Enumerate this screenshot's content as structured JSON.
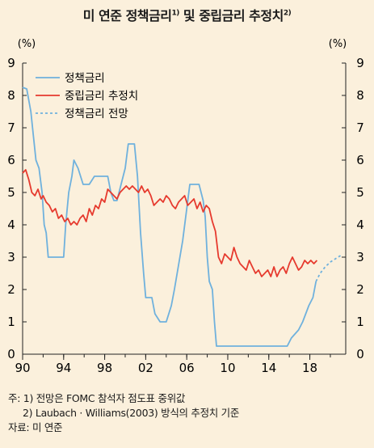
{
  "title": {
    "part1": "미 연준 정책금리",
    "sup1": "1)",
    "part2": " 및 중립금리 추정치",
    "sup2": "2)"
  },
  "notes": {
    "note1": "주: 1) 전망은 FOMC 참석자 점도표 중위값",
    "note2": "2) Laubach · Williams(2003) 방식의 추정치 기준",
    "source": "자료: 미 연준"
  },
  "colors": {
    "policy": "#6fb1dd",
    "neutral": "#e63a2e",
    "projection": "#6fb1dd",
    "background": "#fbf0dc"
  },
  "chart_data": {
    "type": "line",
    "title": "미 연준 정책금리 및 중립금리 추정치",
    "ylabel_left": "(%)",
    "ylabel_right": "(%)",
    "xlabel": "",
    "ylim": [
      0,
      9
    ],
    "xlim": [
      1990,
      2021.5
    ],
    "yticks": [
      "0",
      "1",
      "2",
      "3",
      "4",
      "5",
      "6",
      "7",
      "8",
      "9"
    ],
    "xticks": [
      {
        "value": 1990,
        "label": "90"
      },
      {
        "value": 1994,
        "label": "94"
      },
      {
        "value": 1998,
        "label": "98"
      },
      {
        "value": 2002,
        "label": "02"
      },
      {
        "value": 2006,
        "label": "06"
      },
      {
        "value": 2010,
        "label": "10"
      },
      {
        "value": 2014,
        "label": "14"
      },
      {
        "value": 2018,
        "label": "18"
      }
    ],
    "legend_position": "top-left",
    "grid": false,
    "series": [
      {
        "name": "정책금리",
        "style": "solid",
        "x": [
          1990.0,
          1990.4,
          1990.8,
          1991.0,
          1991.3,
          1991.6,
          1991.9,
          1992.1,
          1992.3,
          1992.5,
          1992.8,
          1993.5,
          1994.0,
          1994.2,
          1994.5,
          1994.8,
          1995.0,
          1995.4,
          1995.9,
          1996.5,
          1997.0,
          1997.2,
          1997.5,
          1998.3,
          1998.6,
          1998.9,
          1999.2,
          1999.6,
          2000.0,
          2000.3,
          2000.9,
          2001.2,
          2001.5,
          2001.8,
          2002.0,
          2002.6,
          2002.9,
          2003.4,
          2004.0,
          2004.5,
          2004.8,
          2005.2,
          2005.6,
          2006.0,
          2006.3,
          2006.6,
          2007.2,
          2007.6,
          2007.8,
          2008.0,
          2008.2,
          2008.5,
          2008.7,
          2008.9,
          2009.0,
          2015.8,
          2016.2,
          2016.9,
          2017.3,
          2017.6,
          2017.9,
          2018.3,
          2018.6
        ],
        "y": [
          8.25,
          8.2,
          7.5,
          6.9,
          6.0,
          5.75,
          5.0,
          4.0,
          3.75,
          3.0,
          3.0,
          3.0,
          3.0,
          4.0,
          5.0,
          5.5,
          6.0,
          5.75,
          5.25,
          5.25,
          5.5,
          5.5,
          5.5,
          5.5,
          5.0,
          4.75,
          4.75,
          5.25,
          5.75,
          6.5,
          6.5,
          5.5,
          3.75,
          2.5,
          1.75,
          1.75,
          1.25,
          1.0,
          1.0,
          1.5,
          2.0,
          2.75,
          3.5,
          4.5,
          5.25,
          5.25,
          5.25,
          4.75,
          4.25,
          3.0,
          2.25,
          2.0,
          1.0,
          0.25,
          0.25,
          0.25,
          0.5,
          0.75,
          1.0,
          1.25,
          1.5,
          1.75,
          2.25
        ]
      },
      {
        "name": "중립금리 추정치",
        "style": "solid",
        "x": [
          1990.0,
          1990.3,
          1990.6,
          1990.9,
          1991.2,
          1991.5,
          1991.8,
          1992.0,
          1992.3,
          1992.6,
          1992.9,
          1993.2,
          1993.5,
          1993.8,
          1994.1,
          1994.4,
          1994.7,
          1995.0,
          1995.3,
          1995.6,
          1995.9,
          1996.2,
          1996.5,
          1996.8,
          1997.1,
          1997.4,
          1997.7,
          1998.0,
          1998.3,
          1998.6,
          1998.9,
          1999.2,
          1999.5,
          1999.8,
          2000.1,
          2000.4,
          2000.7,
          2001.0,
          2001.3,
          2001.6,
          2001.9,
          2002.2,
          2002.5,
          2002.8,
          2003.1,
          2003.4,
          2003.7,
          2004.0,
          2004.3,
          2004.6,
          2004.9,
          2005.2,
          2005.5,
          2005.8,
          2006.1,
          2006.4,
          2006.7,
          2007.0,
          2007.3,
          2007.6,
          2007.9,
          2008.2,
          2008.5,
          2008.8,
          2009.1,
          2009.4,
          2009.7,
          2010.0,
          2010.3,
          2010.6,
          2010.9,
          2011.2,
          2011.5,
          2011.8,
          2012.1,
          2012.4,
          2012.7,
          2013.0,
          2013.3,
          2013.6,
          2013.9,
          2014.2,
          2014.5,
          2014.8,
          2015.1,
          2015.4,
          2015.7,
          2016.0,
          2016.3,
          2016.6,
          2016.9,
          2017.2,
          2017.5,
          2017.8,
          2018.1,
          2018.4,
          2018.7
        ],
        "y": [
          5.6,
          5.7,
          5.4,
          5.0,
          4.9,
          5.1,
          4.8,
          4.9,
          4.7,
          4.6,
          4.4,
          4.5,
          4.2,
          4.3,
          4.1,
          4.2,
          4.0,
          4.1,
          4.0,
          4.2,
          4.3,
          4.1,
          4.5,
          4.3,
          4.6,
          4.5,
          4.8,
          4.7,
          5.1,
          5.0,
          4.9,
          4.8,
          5.0,
          5.1,
          5.2,
          5.1,
          5.2,
          5.1,
          5.0,
          5.2,
          5.0,
          5.1,
          4.9,
          4.6,
          4.7,
          4.8,
          4.7,
          4.9,
          4.8,
          4.6,
          4.5,
          4.7,
          4.8,
          4.9,
          4.6,
          4.7,
          4.8,
          4.5,
          4.7,
          4.4,
          4.6,
          4.5,
          4.1,
          3.8,
          3.0,
          2.8,
          3.1,
          3.0,
          2.9,
          3.3,
          3.0,
          2.8,
          2.7,
          2.6,
          2.9,
          2.7,
          2.5,
          2.6,
          2.4,
          2.5,
          2.6,
          2.4,
          2.7,
          2.4,
          2.6,
          2.7,
          2.5,
          2.8,
          3.0,
          2.8,
          2.6,
          2.7,
          2.9,
          2.8,
          2.9,
          2.8,
          2.9
        ]
      },
      {
        "name": "정책금리 전망",
        "style": "dashed",
        "x": [
          2018.6,
          2019.0,
          2019.5,
          2020.0,
          2020.5,
          2021.0
        ],
        "y": [
          2.25,
          2.5,
          2.7,
          2.85,
          2.95,
          3.05
        ]
      }
    ]
  }
}
